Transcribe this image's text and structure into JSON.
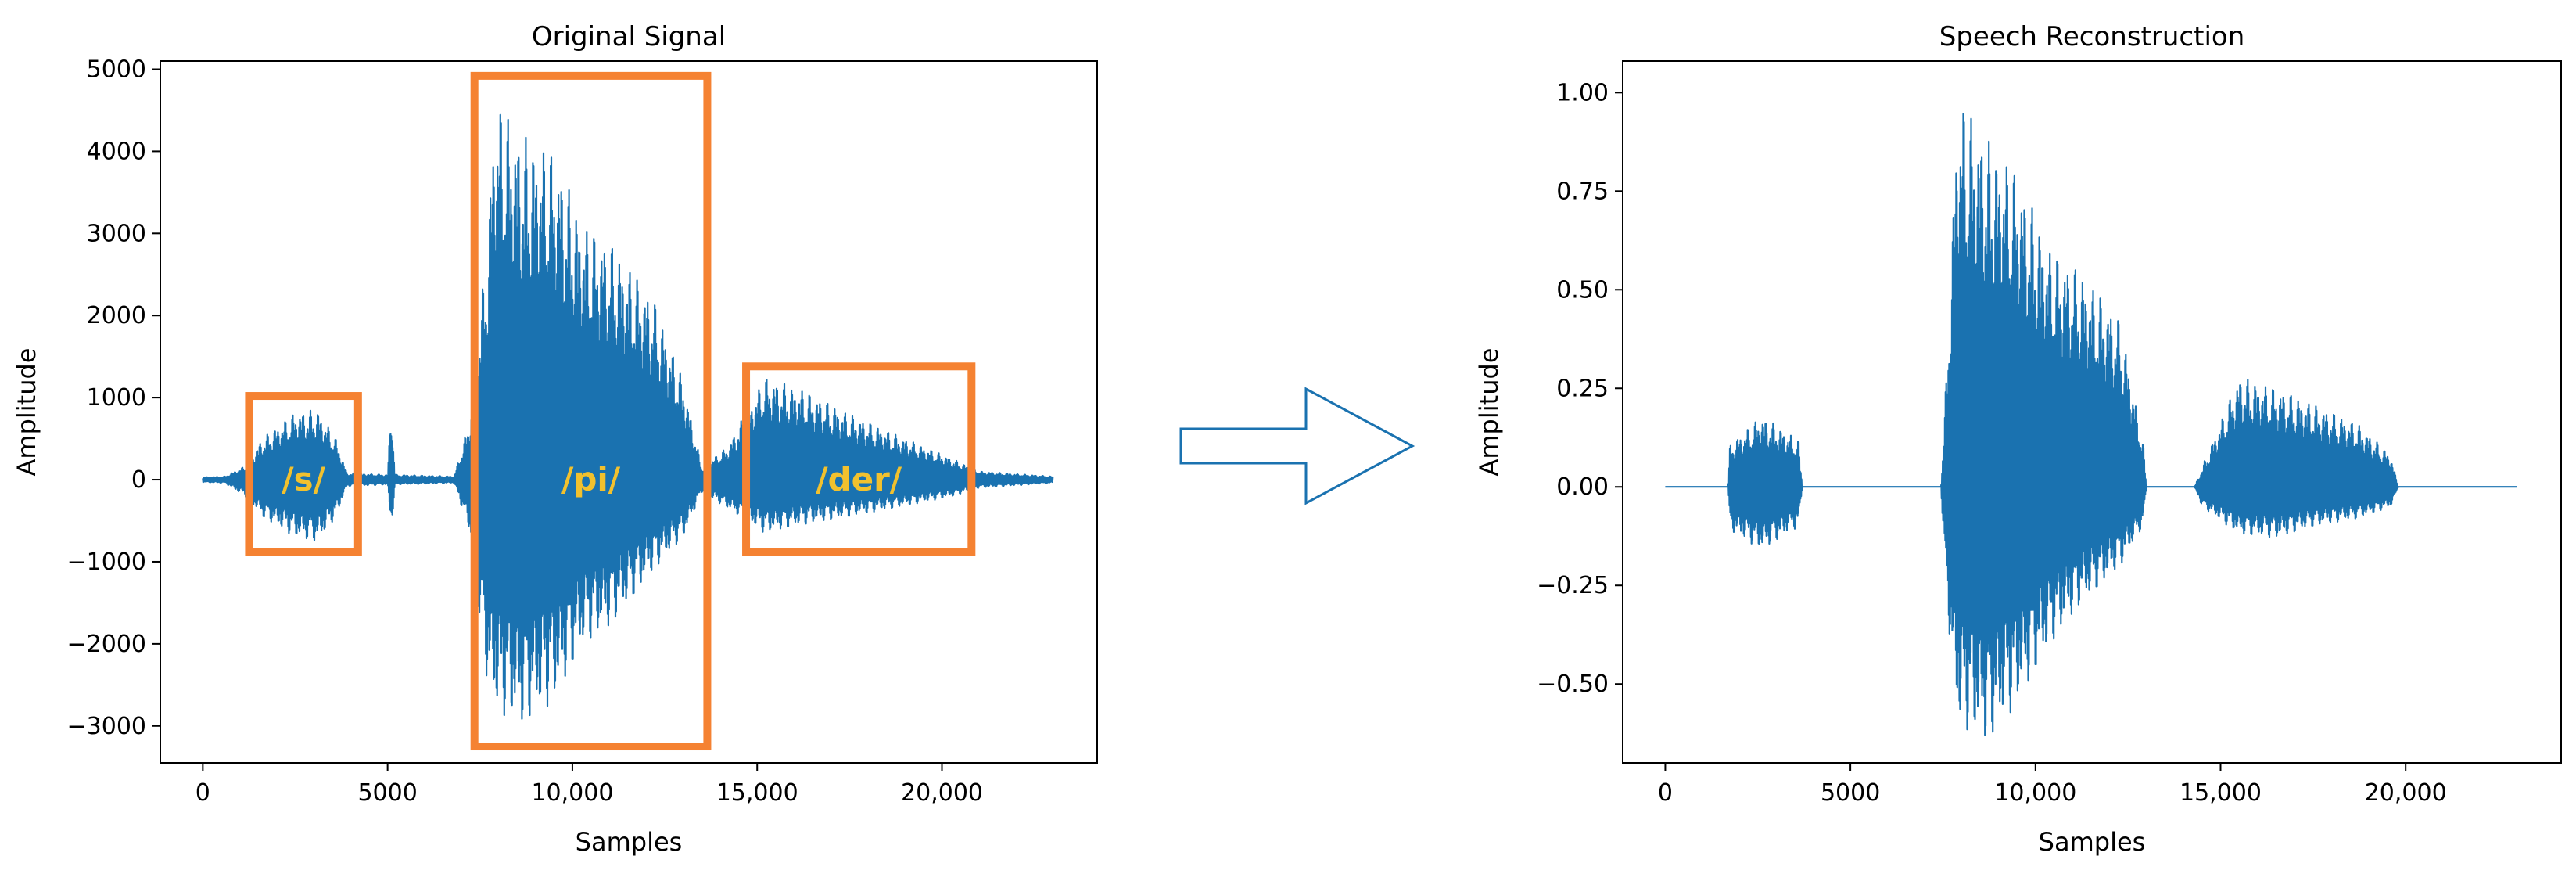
{
  "colors": {
    "signal": "#1a72b0",
    "box": "#f58232",
    "annotation": "#f2c12e",
    "arrow": "#1a72b0"
  },
  "arrow_icon": "right-arrow-icon",
  "chart_data": [
    {
      "type": "line",
      "title": "Original Signal",
      "xlabel": "Samples",
      "ylabel": "Amplitude",
      "xlim": [
        -1150,
        24200
      ],
      "ylim": [
        -3450,
        5100
      ],
      "xticks": [
        0,
        5000,
        10000,
        15000,
        20000
      ],
      "xtick_labels": [
        "0",
        "5000",
        "10,000",
        "15,000",
        "20,000"
      ],
      "yticks": [
        -3000,
        -2000,
        -1000,
        0,
        1000,
        2000,
        3000,
        4000,
        5000
      ],
      "ytick_labels": [
        "−3000",
        "−2000",
        "−1000",
        "0",
        "1000",
        "2000",
        "3000",
        "4000",
        "5000"
      ],
      "grid": false,
      "n_samples": 23000,
      "envelope": [
        {
          "x": 0,
          "hi": 30,
          "lo": -30
        },
        {
          "x": 600,
          "hi": 40,
          "lo": -40
        },
        {
          "x": 1200,
          "hi": 180,
          "lo": -220
        },
        {
          "x": 1600,
          "hi": 500,
          "lo": -450
        },
        {
          "x": 2500,
          "hi": 820,
          "lo": -700
        },
        {
          "x": 3100,
          "hi": 850,
          "lo": -760
        },
        {
          "x": 3600,
          "hi": 500,
          "lo": -450
        },
        {
          "x": 3900,
          "hi": 80,
          "lo": -80
        },
        {
          "x": 5000,
          "hi": 60,
          "lo": -60
        },
        {
          "x": 5100,
          "hi": 980,
          "lo": -620
        },
        {
          "x": 5200,
          "hi": 60,
          "lo": -60
        },
        {
          "x": 6800,
          "hi": 40,
          "lo": -40
        },
        {
          "x": 7200,
          "hi": 700,
          "lo": -600
        },
        {
          "x": 7700,
          "hi": 2900,
          "lo": -2500
        },
        {
          "x": 7900,
          "hi": 4700,
          "lo": -2800
        },
        {
          "x": 8600,
          "hi": 4200,
          "lo": -3000
        },
        {
          "x": 9500,
          "hi": 4000,
          "lo": -2700
        },
        {
          "x": 10300,
          "hi": 3100,
          "lo": -2000
        },
        {
          "x": 11000,
          "hi": 2900,
          "lo": -1800
        },
        {
          "x": 12200,
          "hi": 2200,
          "lo": -1100
        },
        {
          "x": 13000,
          "hi": 1200,
          "lo": -700
        },
        {
          "x": 13500,
          "hi": 150,
          "lo": -150
        },
        {
          "x": 14200,
          "hi": 400,
          "lo": -350
        },
        {
          "x": 15200,
          "hi": 1250,
          "lo": -650
        },
        {
          "x": 16200,
          "hi": 1100,
          "lo": -550
        },
        {
          "x": 17500,
          "hi": 800,
          "lo": -450
        },
        {
          "x": 19000,
          "hi": 500,
          "lo": -320
        },
        {
          "x": 20300,
          "hi": 250,
          "lo": -200
        },
        {
          "x": 21000,
          "hi": 100,
          "lo": -100
        },
        {
          "x": 23000,
          "hi": 40,
          "lo": -40
        }
      ],
      "annotations": [
        {
          "label": "/s/",
          "x": [
            1250,
            4200
          ],
          "y": [
            -880,
            1020
          ]
        },
        {
          "label": "/pi/",
          "x": [
            7350,
            13650
          ],
          "y": [
            -3250,
            4920
          ]
        },
        {
          "label": "/der/",
          "x": [
            14700,
            20800
          ],
          "y": [
            -880,
            1380
          ]
        }
      ]
    },
    {
      "type": "line",
      "title": "Speech Reconstruction",
      "xlabel": "Samples",
      "ylabel": "Amplitude",
      "xlim": [
        -1150,
        24200
      ],
      "ylim": [
        -0.7,
        1.08
      ],
      "xticks": [
        0,
        5000,
        10000,
        15000,
        20000
      ],
      "xtick_labels": [
        "0",
        "5000",
        "10,000",
        "15,000",
        "20,000"
      ],
      "yticks": [
        -0.5,
        -0.25,
        0.0,
        0.25,
        0.5,
        0.75,
        1.0
      ],
      "ytick_labels": [
        "−0.50",
        "−0.25",
        "0.00",
        "0.25",
        "0.50",
        "0.75",
        "1.00"
      ],
      "grid": false,
      "n_samples": 23000,
      "envelope": [
        {
          "x": 0,
          "hi": 0,
          "lo": 0
        },
        {
          "x": 1700,
          "hi": 0,
          "lo": 0
        },
        {
          "x": 1750,
          "hi": 0.11,
          "lo": -0.11
        },
        {
          "x": 2600,
          "hi": 0.18,
          "lo": -0.16
        },
        {
          "x": 3600,
          "hi": 0.12,
          "lo": -0.1
        },
        {
          "x": 3700,
          "hi": 0,
          "lo": 0
        },
        {
          "x": 7450,
          "hi": 0,
          "lo": 0
        },
        {
          "x": 7600,
          "hi": 0.3,
          "lo": -0.3
        },
        {
          "x": 7900,
          "hi": 1.0,
          "lo": -0.6
        },
        {
          "x": 8700,
          "hi": 0.88,
          "lo": -0.65
        },
        {
          "x": 9500,
          "hi": 0.8,
          "lo": -0.55
        },
        {
          "x": 10400,
          "hi": 0.6,
          "lo": -0.4
        },
        {
          "x": 11200,
          "hi": 0.55,
          "lo": -0.3
        },
        {
          "x": 12300,
          "hi": 0.42,
          "lo": -0.2
        },
        {
          "x": 12900,
          "hi": 0.12,
          "lo": -0.1
        },
        {
          "x": 13000,
          "hi": 0,
          "lo": 0
        },
        {
          "x": 14300,
          "hi": 0,
          "lo": 0
        },
        {
          "x": 14500,
          "hi": 0.05,
          "lo": -0.05
        },
        {
          "x": 15500,
          "hi": 0.28,
          "lo": -0.12
        },
        {
          "x": 16500,
          "hi": 0.25,
          "lo": -0.13
        },
        {
          "x": 17500,
          "hi": 0.21,
          "lo": -0.1
        },
        {
          "x": 18700,
          "hi": 0.16,
          "lo": -0.08
        },
        {
          "x": 19600,
          "hi": 0.08,
          "lo": -0.05
        },
        {
          "x": 19800,
          "hi": 0,
          "lo": 0
        },
        {
          "x": 23000,
          "hi": 0,
          "lo": 0
        }
      ]
    }
  ]
}
